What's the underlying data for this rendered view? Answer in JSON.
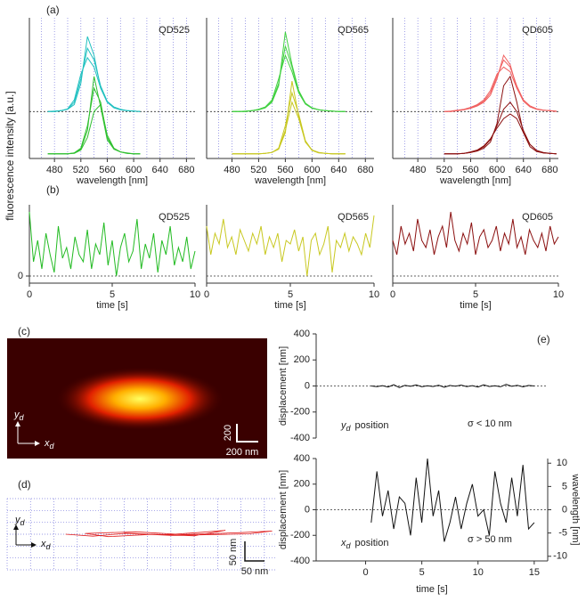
{
  "figure": {
    "panel_labels": [
      "(a)",
      "(b)",
      "(c)",
      "(d)",
      "(e)"
    ],
    "shared_ylabel": "fluorescence intensity [a.u.]"
  },
  "chart_data": [
    {
      "type": "line",
      "title": "QD525",
      "xlabel": "wavelength [nm]",
      "xlim": [
        442,
        693
      ],
      "xticks": [
        480,
        520,
        560,
        600,
        640,
        680
      ],
      "xgrid": [
        460,
        480,
        500,
        520,
        540,
        560,
        580,
        600,
        620,
        640,
        660,
        680
      ],
      "ylim": [
        0,
        3
      ],
      "hline": 1,
      "x": [
        470,
        480,
        490,
        500,
        510,
        520,
        530,
        540,
        550,
        560,
        570,
        580,
        590,
        600,
        610
      ],
      "series": [
        {
          "color": "#20c0c0",
          "values": [
            1.0,
            1.0,
            1.02,
            1.05,
            1.15,
            1.6,
            2.6,
            2.2,
            1.5,
            1.2,
            1.08,
            1.04,
            1.02,
            1.01,
            1.0
          ]
        },
        {
          "color": "#20c0c0",
          "values": [
            1.0,
            1.0,
            1.02,
            1.05,
            1.2,
            1.7,
            2.35,
            2.1,
            1.55,
            1.22,
            1.1,
            1.05,
            1.02,
            1.01,
            1.0
          ]
        },
        {
          "color": "#20c0c0",
          "values": [
            1.0,
            1.01,
            1.02,
            1.06,
            1.25,
            1.8,
            2.15,
            1.95,
            1.5,
            1.2,
            1.08,
            1.04,
            1.02,
            1.01,
            1.0
          ]
        },
        {
          "color": "#30c030",
          "values": [
            0.1,
            0.1,
            0.1,
            0.1,
            0.12,
            0.2,
            0.6,
            1.75,
            1.1,
            0.4,
            0.2,
            0.14,
            0.12,
            0.1,
            0.1
          ]
        },
        {
          "color": "#30c030",
          "values": [
            0.1,
            0.1,
            0.1,
            0.1,
            0.12,
            0.22,
            0.7,
            1.5,
            1.2,
            0.45,
            0.2,
            0.14,
            0.11,
            0.1,
            0.1
          ]
        },
        {
          "color": "#30c030",
          "values": [
            0.1,
            0.1,
            0.1,
            0.1,
            0.11,
            0.18,
            0.45,
            1.0,
            1.15,
            0.5,
            0.22,
            0.14,
            0.11,
            0.1,
            0.1
          ]
        }
      ]
    },
    {
      "type": "line",
      "title": "QD565",
      "xlabel": "wavelength [nm]",
      "xlim": [
        442,
        693
      ],
      "xticks": [
        480,
        520,
        560,
        600,
        640,
        680
      ],
      "xgrid": [
        460,
        480,
        500,
        520,
        540,
        560,
        580,
        600,
        620,
        640,
        660,
        680
      ],
      "ylim": [
        0,
        3
      ],
      "hline": 1,
      "x": [
        480,
        490,
        500,
        510,
        520,
        530,
        540,
        550,
        560,
        570,
        580,
        590,
        600,
        610,
        620,
        630,
        640,
        650
      ],
      "series": [
        {
          "color": "#40d040",
          "values": [
            1.0,
            1.0,
            1.0,
            1.02,
            1.04,
            1.08,
            1.2,
            1.55,
            2.7,
            2.0,
            1.45,
            1.18,
            1.08,
            1.04,
            1.02,
            1.01,
            1.0,
            1.0
          ]
        },
        {
          "color": "#40d040",
          "values": [
            1.0,
            1.0,
            1.0,
            1.02,
            1.04,
            1.08,
            1.22,
            1.6,
            2.4,
            1.95,
            1.42,
            1.18,
            1.08,
            1.04,
            1.02,
            1.01,
            1.0,
            1.0
          ]
        },
        {
          "color": "#40d040",
          "values": [
            1.0,
            1.0,
            1.01,
            1.02,
            1.05,
            1.1,
            1.25,
            1.7,
            2.2,
            1.85,
            1.4,
            1.16,
            1.07,
            1.04,
            1.02,
            1.01,
            1.0,
            1.0
          ]
        },
        {
          "color": "#c8c820",
          "values": [
            0.1,
            0.1,
            0.1,
            0.1,
            0.1,
            0.11,
            0.13,
            0.2,
            0.55,
            1.65,
            0.9,
            0.35,
            0.18,
            0.13,
            0.11,
            0.1,
            0.1,
            0.1
          ]
        },
        {
          "color": "#c8c820",
          "values": [
            0.1,
            0.1,
            0.1,
            0.1,
            0.1,
            0.11,
            0.13,
            0.22,
            0.7,
            1.4,
            0.95,
            0.38,
            0.18,
            0.13,
            0.11,
            0.1,
            0.1,
            0.1
          ]
        },
        {
          "color": "#c8c820",
          "values": [
            0.1,
            0.1,
            0.1,
            0.1,
            0.1,
            0.11,
            0.13,
            0.2,
            0.6,
            1.2,
            0.85,
            0.36,
            0.17,
            0.12,
            0.11,
            0.1,
            0.1,
            0.1
          ]
        }
      ]
    },
    {
      "type": "line",
      "title": "QD605",
      "xlabel": "wavelength [nm]",
      "xlim": [
        442,
        693
      ],
      "xticks": [
        480,
        520,
        560,
        600,
        640,
        680
      ],
      "xgrid": [
        460,
        480,
        500,
        520,
        540,
        560,
        580,
        600,
        620,
        640,
        660,
        680
      ],
      "ylim": [
        0,
        3
      ],
      "hline": 1,
      "x": [
        520,
        530,
        540,
        550,
        560,
        570,
        580,
        590,
        600,
        610,
        620,
        630,
        640,
        650,
        660,
        670,
        680,
        690
      ],
      "series": [
        {
          "color": "#f06060",
          "values": [
            1.0,
            1.0,
            1.02,
            1.04,
            1.07,
            1.12,
            1.2,
            1.35,
            1.7,
            2.2,
            2.0,
            1.5,
            1.22,
            1.1,
            1.05,
            1.03,
            1.02,
            1.0
          ]
        },
        {
          "color": "#f06060",
          "values": [
            1.0,
            1.0,
            1.02,
            1.04,
            1.08,
            1.14,
            1.22,
            1.4,
            1.75,
            2.1,
            1.95,
            1.55,
            1.25,
            1.12,
            1.06,
            1.03,
            1.02,
            1.0
          ]
        },
        {
          "color": "#f06060",
          "values": [
            1.0,
            1.01,
            1.03,
            1.05,
            1.09,
            1.15,
            1.25,
            1.45,
            1.8,
            1.95,
            1.85,
            1.5,
            1.25,
            1.12,
            1.06,
            1.03,
            1.02,
            1.01
          ]
        },
        {
          "color": "#8b1010",
          "values": [
            0.1,
            0.1,
            0.1,
            0.11,
            0.13,
            0.16,
            0.22,
            0.35,
            0.75,
            1.55,
            1.75,
            1.2,
            0.55,
            0.25,
            0.15,
            0.12,
            0.11,
            0.1
          ]
        },
        {
          "color": "#8b1010",
          "values": [
            0.1,
            0.1,
            0.1,
            0.11,
            0.13,
            0.17,
            0.25,
            0.4,
            0.7,
            1.05,
            1.2,
            1.0,
            0.6,
            0.3,
            0.17,
            0.12,
            0.11,
            0.1
          ]
        },
        {
          "color": "#8b1010",
          "values": [
            0.1,
            0.1,
            0.1,
            0.11,
            0.14,
            0.18,
            0.27,
            0.42,
            0.65,
            0.85,
            0.95,
            0.85,
            0.55,
            0.3,
            0.17,
            0.13,
            0.11,
            0.1
          ]
        }
      ]
    },
    {
      "type": "line",
      "title": "QD525",
      "xlabel": "time [s]",
      "xlim": [
        0,
        10
      ],
      "xticks": [
        0,
        5,
        10
      ],
      "ylim": [
        -0.1,
        1
      ],
      "yticks": [
        0
      ],
      "hline": 0,
      "x": [
        0,
        0.25,
        0.5,
        0.75,
        1,
        1.25,
        1.5,
        1.75,
        2,
        2.25,
        2.5,
        2.75,
        3,
        3.25,
        3.5,
        3.75,
        4,
        4.25,
        4.5,
        4.75,
        5,
        5.25,
        5.5,
        5.75,
        6,
        6.25,
        6.5,
        6.75,
        7,
        7.25,
        7.5,
        7.75,
        8,
        8.25,
        8.5,
        8.75,
        9,
        9.25,
        9.5,
        9.75,
        10
      ],
      "series": [
        {
          "color": "#22bb22",
          "values": [
            0.9,
            0.2,
            0.5,
            0.1,
            0.6,
            0.3,
            0.05,
            0.7,
            0.25,
            0.4,
            0.1,
            0.55,
            0.3,
            0.2,
            0.65,
            0.1,
            0.45,
            0.3,
            0.75,
            0.15,
            0.5,
            0.0,
            0.4,
            0.6,
            0.2,
            0.35,
            0.8,
            0.1,
            0.45,
            0.25,
            0.6,
            0.05,
            0.5,
            0.3,
            0.7,
            0.15,
            0.4,
            0.2,
            0.55,
            0.1,
            0.35
          ]
        }
      ]
    },
    {
      "type": "line",
      "title": "QD565",
      "xlabel": "time [s]",
      "xlim": [
        0,
        10
      ],
      "xticks": [
        0,
        5,
        10
      ],
      "ylim": [
        -0.1,
        1
      ],
      "hline": 0,
      "x": [
        0,
        0.25,
        0.5,
        0.75,
        1,
        1.25,
        1.5,
        1.75,
        2,
        2.25,
        2.5,
        2.75,
        3,
        3.25,
        3.5,
        3.75,
        4,
        4.25,
        4.5,
        4.75,
        5,
        5.25,
        5.5,
        5.75,
        6,
        6.25,
        6.5,
        6.75,
        7,
        7.25,
        7.5,
        7.75,
        8,
        8.25,
        8.5,
        8.75,
        9,
        9.25,
        9.5,
        9.75,
        10
      ],
      "series": [
        {
          "color": "#c8c820",
          "values": [
            0.7,
            0.3,
            0.6,
            0.45,
            0.8,
            0.4,
            0.55,
            0.3,
            0.65,
            0.5,
            0.35,
            0.6,
            0.45,
            0.7,
            0.3,
            0.55,
            0.4,
            0.6,
            0.2,
            0.5,
            0.45,
            0.65,
            0.35,
            0.55,
            0.0,
            0.5,
            0.6,
            0.3,
            0.45,
            0.7,
            0.05,
            0.5,
            0.4,
            0.6,
            0.35,
            0.55,
            0.45,
            0.3,
            0.6,
            0.4,
            0.85
          ]
        }
      ]
    },
    {
      "type": "line",
      "title": "QD605",
      "xlabel": "time [s]",
      "xlim": [
        0,
        10
      ],
      "xticks": [
        0,
        5,
        10
      ],
      "ylim": [
        -0.1,
        1
      ],
      "hline": 0,
      "x": [
        0,
        0.25,
        0.5,
        0.75,
        1,
        1.25,
        1.5,
        1.75,
        2,
        2.25,
        2.5,
        2.75,
        3,
        3.25,
        3.5,
        3.75,
        4,
        4.25,
        4.5,
        4.75,
        5,
        5.25,
        5.5,
        5.75,
        6,
        6.25,
        6.5,
        6.75,
        7,
        7.25,
        7.5,
        7.75,
        8,
        8.25,
        8.5,
        8.75,
        9,
        9.25,
        9.5,
        9.75,
        10
      ],
      "series": [
        {
          "color": "#8b1010",
          "values": [
            0.5,
            0.3,
            0.7,
            0.45,
            0.6,
            0.35,
            0.8,
            0.5,
            0.4,
            0.65,
            0.3,
            0.55,
            0.7,
            0.4,
            0.9,
            0.5,
            0.35,
            0.6,
            0.45,
            0.75,
            0.3,
            0.55,
            0.65,
            0.4,
            0.5,
            0.7,
            0.35,
            0.6,
            0.45,
            0.8,
            0.4,
            0.55,
            0.3,
            0.65,
            0.5,
            0.4,
            0.6,
            0.35,
            0.7,
            0.45,
            0.55
          ]
        }
      ]
    },
    {
      "type": "image",
      "y_label": {
        "var": "y",
        "sub": "d"
      },
      "x_label": {
        "var": "x",
        "sub": "d"
      },
      "scale_labels": [
        "200",
        "200 nm"
      ]
    },
    {
      "type": "line",
      "xlim": [
        0,
        690
      ],
      "ylim": [
        0,
        180
      ],
      "xgrid": [
        0,
        60,
        120,
        180,
        240,
        300,
        360,
        420,
        480,
        540,
        600,
        660
      ],
      "ygrid": [
        0,
        30,
        60,
        90,
        120,
        150,
        180
      ],
      "y_label": {
        "var": "y",
        "sub": "d"
      },
      "x_label": {
        "var": "x",
        "sub": "d"
      },
      "scale_labels": [
        "50 nm",
        "50 nm"
      ],
      "x": [
        150,
        220,
        300,
        400,
        500,
        560,
        480,
        380,
        260,
        200,
        330,
        450,
        600,
        680,
        620,
        420,
        300
      ],
      "series": [
        {
          "color": "#e02020",
          "values": [
            90,
            85,
            92,
            88,
            95,
            100,
            86,
            90,
            84,
            92,
            96,
            89,
            94,
            98,
            91,
            87,
            93
          ]
        }
      ]
    },
    {
      "type": "line",
      "ylabel": "displacement [nm]",
      "xlim": [
        -4.4,
        16.2
      ],
      "ylim": [
        -400,
        400
      ],
      "yticks": [
        -400,
        -200,
        0,
        200,
        400
      ],
      "hline": 0,
      "annotations": [
        {
          "text": "σ < 10 nm"
        },
        {
          "var": "y",
          "sub": "d",
          "text": "position"
        }
      ],
      "x": [
        0.5,
        1,
        1.5,
        2,
        2.5,
        3,
        3.5,
        4,
        4.5,
        5,
        5.5,
        6,
        6.5,
        7,
        7.5,
        8,
        8.5,
        9,
        9.5,
        10,
        10.5,
        11,
        11.5,
        12,
        12.5,
        13,
        13.5,
        14,
        14.5,
        15
      ],
      "series": [
        {
          "color": "#111",
          "values": [
            0,
            -5,
            3,
            -8,
            10,
            -12,
            5,
            -3,
            8,
            -6,
            2,
            -4,
            6,
            -10,
            4,
            -2,
            7,
            -5,
            3,
            -8,
            9,
            -4,
            2,
            -6,
            12,
            -3,
            5,
            -7,
            4,
            0
          ]
        }
      ]
    },
    {
      "type": "line",
      "ylabel": "displacement [nm]",
      "y2label": "wavelength [nm]",
      "xlabel": "time [s]",
      "xlim": [
        -4.4,
        16.2
      ],
      "xticks": [
        0,
        5,
        10,
        15
      ],
      "ylim": [
        -400,
        400
      ],
      "yticks": [
        -400,
        -200,
        0,
        200,
        400
      ],
      "y2lim": [
        -11,
        11
      ],
      "y2ticks": [
        -10,
        -5,
        0,
        5,
        10
      ],
      "hline": 0,
      "annotations": [
        {
          "text": "σ > 50 nm"
        },
        {
          "var": "x",
          "sub": "d",
          "text": "position"
        }
      ],
      "x": [
        0.5,
        1,
        1.5,
        2,
        2.5,
        3,
        3.5,
        4,
        4.5,
        5,
        5.5,
        6,
        6.5,
        7,
        7.5,
        8,
        8.5,
        9,
        9.5,
        10,
        10.5,
        11,
        11.5,
        12,
        12.5,
        13,
        13.5,
        14,
        14.5,
        15
      ],
      "series": [
        {
          "color": "#111",
          "values": [
            -100,
            300,
            -50,
            150,
            -150,
            100,
            50,
            -200,
            250,
            -100,
            400,
            -50,
            150,
            -250,
            -100,
            100,
            -150,
            50,
            200,
            -50,
            0,
            -200,
            300,
            50,
            -100,
            250,
            -50,
            350,
            -150,
            -100
          ]
        }
      ]
    }
  ]
}
